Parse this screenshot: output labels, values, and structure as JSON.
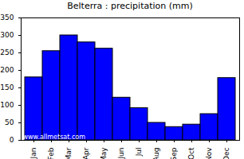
{
  "chart_data": {
    "type": "bar",
    "title": "Belterra : precipitation (mm)",
    "categories": [
      "Jan",
      "Feb",
      "Mar",
      "Apr",
      "May",
      "Jun",
      "Jul",
      "Aug",
      "Sep",
      "Oct",
      "Nov",
      "Dec"
    ],
    "values": [
      180,
      255,
      300,
      280,
      262,
      122,
      92,
      50,
      38,
      45,
      75,
      178
    ],
    "color": "#0000ff",
    "ylim": [
      0,
      350
    ],
    "yticks": [
      0,
      50,
      100,
      150,
      200,
      250,
      300,
      350
    ],
    "grid": false,
    "annotations": [
      "www.allmetsat.com"
    ]
  }
}
